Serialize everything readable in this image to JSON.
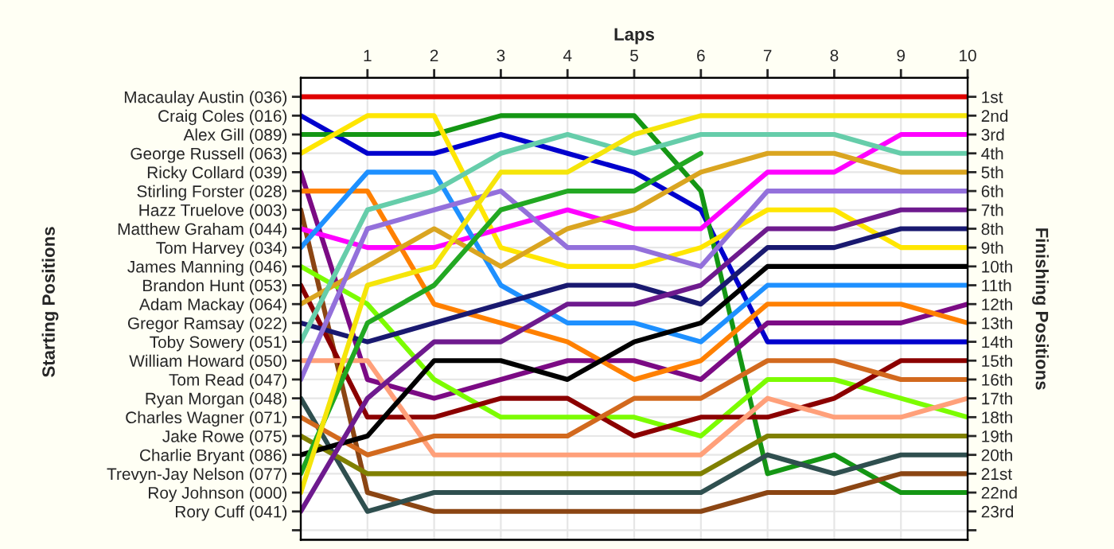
{
  "chart_data": {
    "type": "line",
    "xlabel": "Laps",
    "ylabel": "Finishing Positions",
    "annotations": [
      "Starting Positions"
    ],
    "x": [
      0,
      1,
      2,
      3,
      4,
      5,
      6,
      7,
      8,
      9,
      10
    ],
    "xlim": [
      0,
      10
    ],
    "xticks": [
      1,
      2,
      3,
      4,
      5,
      6,
      7,
      8,
      9,
      10
    ],
    "ylim": [
      24.5,
      0
    ],
    "yticks": [
      {
        "value": 1,
        "label": "1st"
      },
      {
        "value": 2,
        "label": "2nd"
      },
      {
        "value": 3,
        "label": "3rd"
      },
      {
        "value": 4,
        "label": "4th"
      },
      {
        "value": 5,
        "label": "5th"
      },
      {
        "value": 6,
        "label": "6th"
      },
      {
        "value": 7,
        "label": "7th"
      },
      {
        "value": 8,
        "label": "8th"
      },
      {
        "value": 9,
        "label": "9th"
      },
      {
        "value": 10,
        "label": "10th"
      },
      {
        "value": 11,
        "label": "11th"
      },
      {
        "value": 12,
        "label": "12th"
      },
      {
        "value": 13,
        "label": "13th"
      },
      {
        "value": 14,
        "label": "14th"
      },
      {
        "value": 15,
        "label": "15th"
      },
      {
        "value": 16,
        "label": "16th"
      },
      {
        "value": 17,
        "label": "17th"
      },
      {
        "value": 18,
        "label": "18th"
      },
      {
        "value": 19,
        "label": "19th"
      },
      {
        "value": 20,
        "label": "20th"
      },
      {
        "value": 21,
        "label": "21st"
      },
      {
        "value": 22,
        "label": "22nd"
      },
      {
        "value": 23,
        "label": "23rd"
      },
      {
        "value": 24,
        "label": null
      }
    ],
    "grid": true,
    "series": [
      {
        "name": "Macaulay Austin (036)",
        "color": "#e00000",
        "values": [
          1,
          1,
          1,
          1,
          1,
          1,
          1,
          1,
          1,
          1,
          1
        ]
      },
      {
        "name": "Craig Coles (016)",
        "color": "#0000cd",
        "values": [
          2,
          4,
          4,
          3,
          4,
          5,
          7,
          14,
          14,
          14,
          14
        ]
      },
      {
        "name": "Alex Gill (089)",
        "color": "#149614",
        "values": [
          3,
          3,
          3,
          2,
          2,
          2,
          6,
          21,
          20,
          22,
          22
        ]
      },
      {
        "name": "George Russell (063)",
        "color": "#ffe600",
        "values": [
          4,
          2,
          2,
          9,
          10,
          10,
          9,
          7,
          7,
          9,
          9
        ]
      },
      {
        "name": "Ricky Collard (039)",
        "color": "#7b0a84",
        "values": [
          5,
          16,
          17,
          16,
          15,
          15,
          16,
          13,
          13,
          13,
          12
        ]
      },
      {
        "name": "Stirling Forster (028)",
        "color": "#ff8000",
        "values": [
          6,
          6,
          12,
          13,
          14,
          16,
          15,
          12,
          12,
          12,
          13
        ]
      },
      {
        "name": "Hazz Truelove (003)",
        "color": "#8b4513",
        "values": [
          7,
          22,
          23,
          23,
          23,
          23,
          23,
          22,
          22,
          21,
          21
        ]
      },
      {
        "name": "Matthew Graham (044)",
        "color": "#ff00ff",
        "values": [
          8,
          9,
          9,
          8,
          7,
          8,
          8,
          5,
          5,
          3,
          3
        ]
      },
      {
        "name": "Tom Harvey (034)",
        "color": "#1e90ff",
        "values": [
          9,
          5,
          5,
          11,
          13,
          13,
          14,
          11,
          11,
          11,
          11
        ]
      },
      {
        "name": "James Manning (046)",
        "color": "#7cfc00",
        "values": [
          10,
          12,
          16,
          18,
          18,
          18,
          19,
          16,
          16,
          17,
          18
        ]
      },
      {
        "name": "Brandon Hunt (053)",
        "color": "#8b0000",
        "values": [
          11,
          18,
          18,
          17,
          17,
          19,
          18,
          18,
          17,
          15,
          15
        ]
      },
      {
        "name": "Adam Mackay (064)",
        "color": "#daa520",
        "values": [
          12,
          10,
          8,
          10,
          8,
          7,
          5,
          4,
          4,
          5,
          5
        ]
      },
      {
        "name": "Gregor Ramsay (022)",
        "color": "#191970",
        "values": [
          13,
          14,
          13,
          12,
          11,
          11,
          12,
          9,
          9,
          8,
          8
        ]
      },
      {
        "name": "Toby Sowery (051)",
        "color": "#66cdaa",
        "values": [
          14,
          7,
          6,
          4,
          3,
          4,
          3,
          3,
          3,
          4,
          4
        ]
      },
      {
        "name": "William Howard (050)",
        "color": "#ffa07a",
        "values": [
          15,
          15,
          20,
          20,
          20,
          20,
          20,
          17,
          18,
          18,
          17
        ]
      },
      {
        "name": "Tom Read (047)",
        "color": "#9370db",
        "values": [
          16,
          8,
          7,
          6,
          9,
          9,
          10,
          6,
          6,
          6,
          6
        ]
      },
      {
        "name": "Ryan Morgan (048)",
        "color": "#2f4f4f",
        "values": [
          17,
          23,
          22,
          22,
          22,
          22,
          22,
          20,
          21,
          20,
          20
        ]
      },
      {
        "name": "Charles Wagner (071)",
        "color": "#d2691e",
        "values": [
          18,
          20,
          19,
          19,
          19,
          17,
          17,
          15,
          15,
          16,
          16
        ]
      },
      {
        "name": "Jake Rowe (075)",
        "color": "#808000",
        "values": [
          19,
          21,
          21,
          21,
          21,
          21,
          21,
          19,
          19,
          19,
          19
        ]
      },
      {
        "name": "Charlie Bryant (086)",
        "color": "#000000",
        "values": [
          20,
          19,
          15,
          15,
          16,
          14,
          13,
          10,
          10,
          10,
          10
        ]
      },
      {
        "name": "Trevyn-Jay Nelson (077)",
        "color": "#22a822",
        "values": [
          21,
          13,
          11,
          7,
          6,
          6,
          4,
          null,
          null,
          null,
          null
        ]
      },
      {
        "name": "Roy Johnson (000)",
        "color": "#f5e50a",
        "values": [
          22,
          11,
          10,
          5,
          5,
          3,
          2,
          2,
          2,
          2,
          2
        ]
      },
      {
        "name": "Rory Cuff (041)",
        "color": "#6e1a8e",
        "values": [
          23,
          17,
          14,
          14,
          12,
          12,
          11,
          8,
          8,
          7,
          7
        ]
      }
    ]
  }
}
